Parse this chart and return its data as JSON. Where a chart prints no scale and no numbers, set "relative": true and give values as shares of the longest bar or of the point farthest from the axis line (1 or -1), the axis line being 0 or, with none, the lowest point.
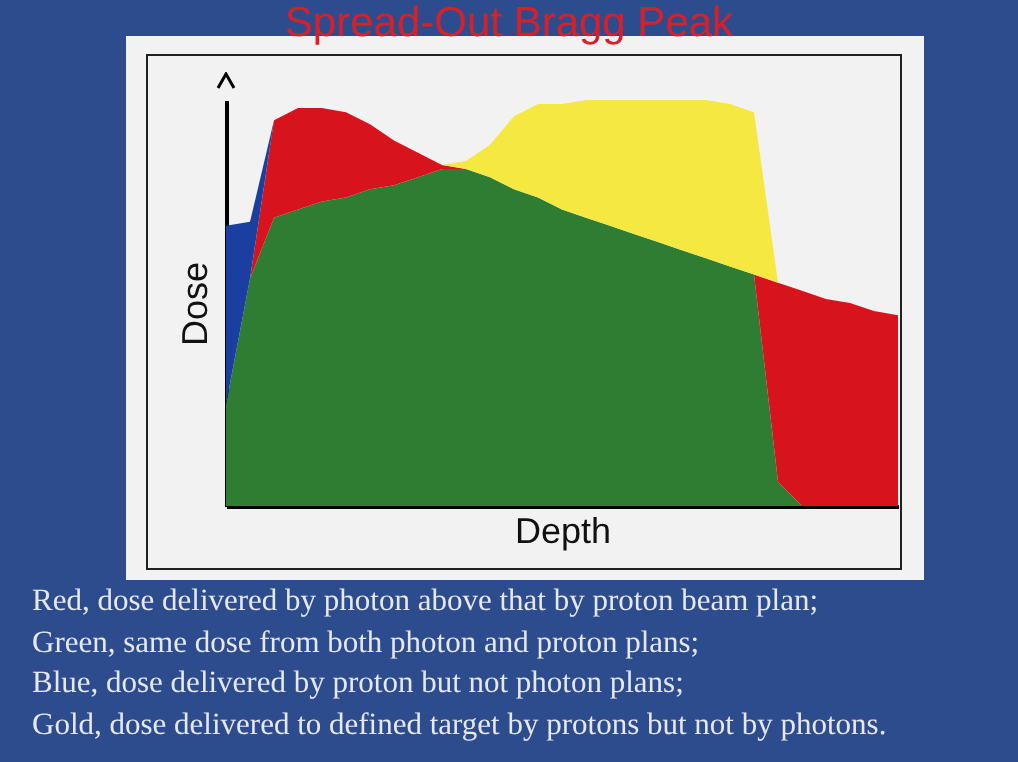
{
  "chart_data": {
    "type": "area",
    "title": "Spread-Out Bragg Peak",
    "xlabel": "Depth",
    "ylabel": "Dose",
    "relative": true,
    "stacked": true,
    "categories": [
      null,
      null,
      null,
      null,
      null,
      null,
      null,
      null,
      null,
      null,
      null,
      null,
      null,
      null,
      null,
      null,
      null,
      null,
      null,
      null,
      null,
      null,
      null,
      null,
      null,
      null,
      null,
      null,
      null
    ],
    "series": [
      {
        "color": "#2e7d32",
        "values": [
          0.25,
          0.56,
          0.71,
          0.73,
          0.75,
          0.76,
          0.78,
          0.79,
          0.81,
          0.83,
          0.83,
          0.81,
          0.78,
          0.76,
          0.73,
          0.71,
          0.69,
          0.67,
          0.65,
          0.63,
          0.61,
          0.59,
          0.57,
          0.06,
          0,
          0,
          0,
          0,
          0
        ]
      },
      {
        "color": "#d7141e",
        "values": [
          0,
          0,
          0.24,
          0.25,
          0.23,
          0.21,
          0.16,
          0.11,
          0.06,
          0.01,
          0,
          0,
          0,
          0,
          0,
          0,
          0,
          0,
          0,
          0,
          0,
          0,
          0,
          0.49,
          0.53,
          0.51,
          0.5,
          0.48,
          0.47
        ]
      },
      {
        "color": "#1a3fa0",
        "values": [
          0.44,
          0.14,
          0,
          0,
          0,
          0,
          0,
          0,
          0,
          0,
          0,
          0,
          0,
          0,
          0,
          0,
          0,
          0,
          0,
          0,
          0,
          0,
          0,
          0,
          0,
          0,
          0,
          0,
          0
        ]
      },
      {
        "color": "#f5e840",
        "values": [
          0,
          0,
          0,
          0,
          0,
          0,
          0,
          0,
          0,
          0,
          0.02,
          0.08,
          0.18,
          0.23,
          0.26,
          0.29,
          0.31,
          0.33,
          0.35,
          0.37,
          0.39,
          0.4,
          0.4,
          0,
          0,
          0,
          0,
          0,
          0
        ]
      }
    ],
    "annotations": [
      "Red, dose delivered by photon above that by proton beam plan;",
      "Green, same dose from both photon and proton plans;",
      "Blue, dose delivered by proton but not photon plans;",
      "Gold, dose delivered to defined target by protons but not by photons."
    ]
  }
}
